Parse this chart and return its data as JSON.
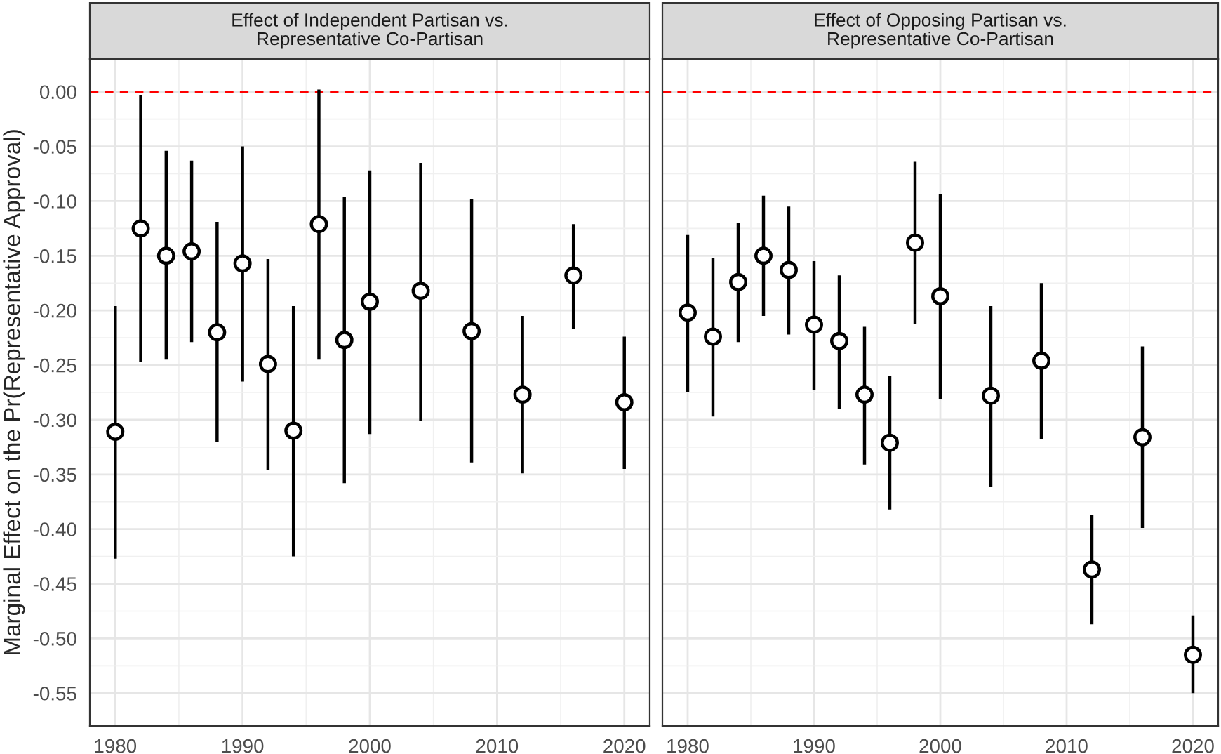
{
  "chart_data": [
    {
      "type": "scatter",
      "title": "Effect of Independent Partisan vs.\nRepresentative Co-Partisan",
      "ylabel": "Marginal Effect on the Pr(Representative Approval)",
      "x": [
        1980,
        1982,
        1984,
        1986,
        1988,
        1990,
        1992,
        1994,
        1996,
        1998,
        2000,
        2004,
        2008,
        2012,
        2016,
        2020
      ],
      "series": [
        {
          "color": "#000000",
          "values": [
            -0.311,
            -0.125,
            -0.15,
            -0.146,
            -0.22,
            -0.157,
            -0.249,
            -0.31,
            -0.121,
            -0.227,
            -0.192,
            -0.182,
            -0.219,
            -0.277,
            -0.168,
            -0.284
          ],
          "errors": [
            [
              -0.427,
              -0.196
            ],
            [
              -0.247,
              -0.003
            ],
            [
              -0.245,
              -0.054
            ],
            [
              -0.229,
              -0.063
            ],
            [
              -0.32,
              -0.119
            ],
            [
              -0.265,
              -0.05
            ],
            [
              -0.346,
              -0.153
            ],
            [
              -0.425,
              -0.196
            ],
            [
              -0.245,
              0.002
            ],
            [
              -0.358,
              -0.096
            ],
            [
              -0.313,
              -0.072
            ],
            [
              -0.301,
              -0.065
            ],
            [
              -0.339,
              -0.098
            ],
            [
              -0.349,
              -0.205
            ],
            [
              -0.217,
              -0.121
            ],
            [
              -0.345,
              -0.224
            ]
          ]
        }
      ],
      "xlim": [
        1978,
        2022
      ],
      "xticks": [
        1980,
        1990,
        2000,
        2010,
        2020
      ],
      "ylim": [
        -0.58,
        0.03
      ],
      "yticks": [
        {
          "value": 0,
          "label": "0.00"
        },
        {
          "value": -0.05,
          "label": "-0.05"
        },
        {
          "value": -0.1,
          "label": "-0.10"
        },
        {
          "value": -0.15,
          "label": "-0.15"
        },
        {
          "value": -0.2,
          "label": "-0.20"
        },
        {
          "value": -0.25,
          "label": "-0.25"
        },
        {
          "value": -0.3,
          "label": "-0.30"
        },
        {
          "value": -0.35,
          "label": "-0.35"
        },
        {
          "value": -0.4,
          "label": "-0.40"
        },
        {
          "value": -0.45,
          "label": "-0.45"
        },
        {
          "value": -0.5,
          "label": "-0.50"
        },
        {
          "value": -0.55,
          "label": "-0.55"
        }
      ],
      "ref_lines": [
        {
          "axis": "y",
          "value": 0,
          "label": null,
          "color": "#ff0000",
          "line_style": "dashed"
        }
      ],
      "grid": true,
      "marker": "circle",
      "legend": false
    },
    {
      "type": "scatter",
      "title": "Effect of Opposing Partisan vs.\nRepresentative Co-Partisan",
      "x": [
        1980,
        1982,
        1984,
        1986,
        1988,
        1990,
        1992,
        1994,
        1996,
        1998,
        2000,
        2004,
        2008,
        2012,
        2016,
        2020
      ],
      "series": [
        {
          "color": "#000000",
          "values": [
            -0.202,
            -0.224,
            -0.174,
            -0.15,
            -0.163,
            -0.213,
            -0.228,
            -0.277,
            -0.321,
            -0.138,
            -0.187,
            -0.278,
            -0.246,
            -0.437,
            -0.316,
            -0.515
          ],
          "errors": [
            [
              -0.275,
              -0.131
            ],
            [
              -0.297,
              -0.152
            ],
            [
              -0.229,
              -0.12
            ],
            [
              -0.205,
              -0.095
            ],
            [
              -0.222,
              -0.105
            ],
            [
              -0.273,
              -0.155
            ],
            [
              -0.29,
              -0.168
            ],
            [
              -0.341,
              -0.215
            ],
            [
              -0.382,
              -0.26
            ],
            [
              -0.212,
              -0.064
            ],
            [
              -0.281,
              -0.094
            ],
            [
              -0.361,
              -0.196
            ],
            [
              -0.318,
              -0.175
            ],
            [
              -0.487,
              -0.387
            ],
            [
              -0.399,
              -0.233
            ],
            [
              -0.55,
              -0.479
            ]
          ]
        }
      ],
      "xlim": [
        1978,
        2022
      ],
      "xticks": [
        1980,
        1990,
        2000,
        2010,
        2020
      ],
      "ylim": [
        -0.58,
        0.03
      ],
      "yticks": [
        {
          "value": 0,
          "label": null
        },
        {
          "value": -0.05,
          "label": null
        },
        {
          "value": -0.1,
          "label": null
        },
        {
          "value": -0.15,
          "label": null
        },
        {
          "value": -0.2,
          "label": null
        },
        {
          "value": -0.25,
          "label": null
        },
        {
          "value": -0.3,
          "label": null
        },
        {
          "value": -0.35,
          "label": null
        },
        {
          "value": -0.4,
          "label": null
        },
        {
          "value": -0.45,
          "label": null
        },
        {
          "value": -0.5,
          "label": null
        },
        {
          "value": -0.55,
          "label": null
        }
      ],
      "ref_lines": [
        {
          "axis": "y",
          "value": 0,
          "label": null,
          "color": "#ff0000",
          "line_style": "dashed"
        }
      ],
      "grid": true,
      "marker": "circle",
      "legend": false,
      "tick_labels": "x"
    }
  ]
}
